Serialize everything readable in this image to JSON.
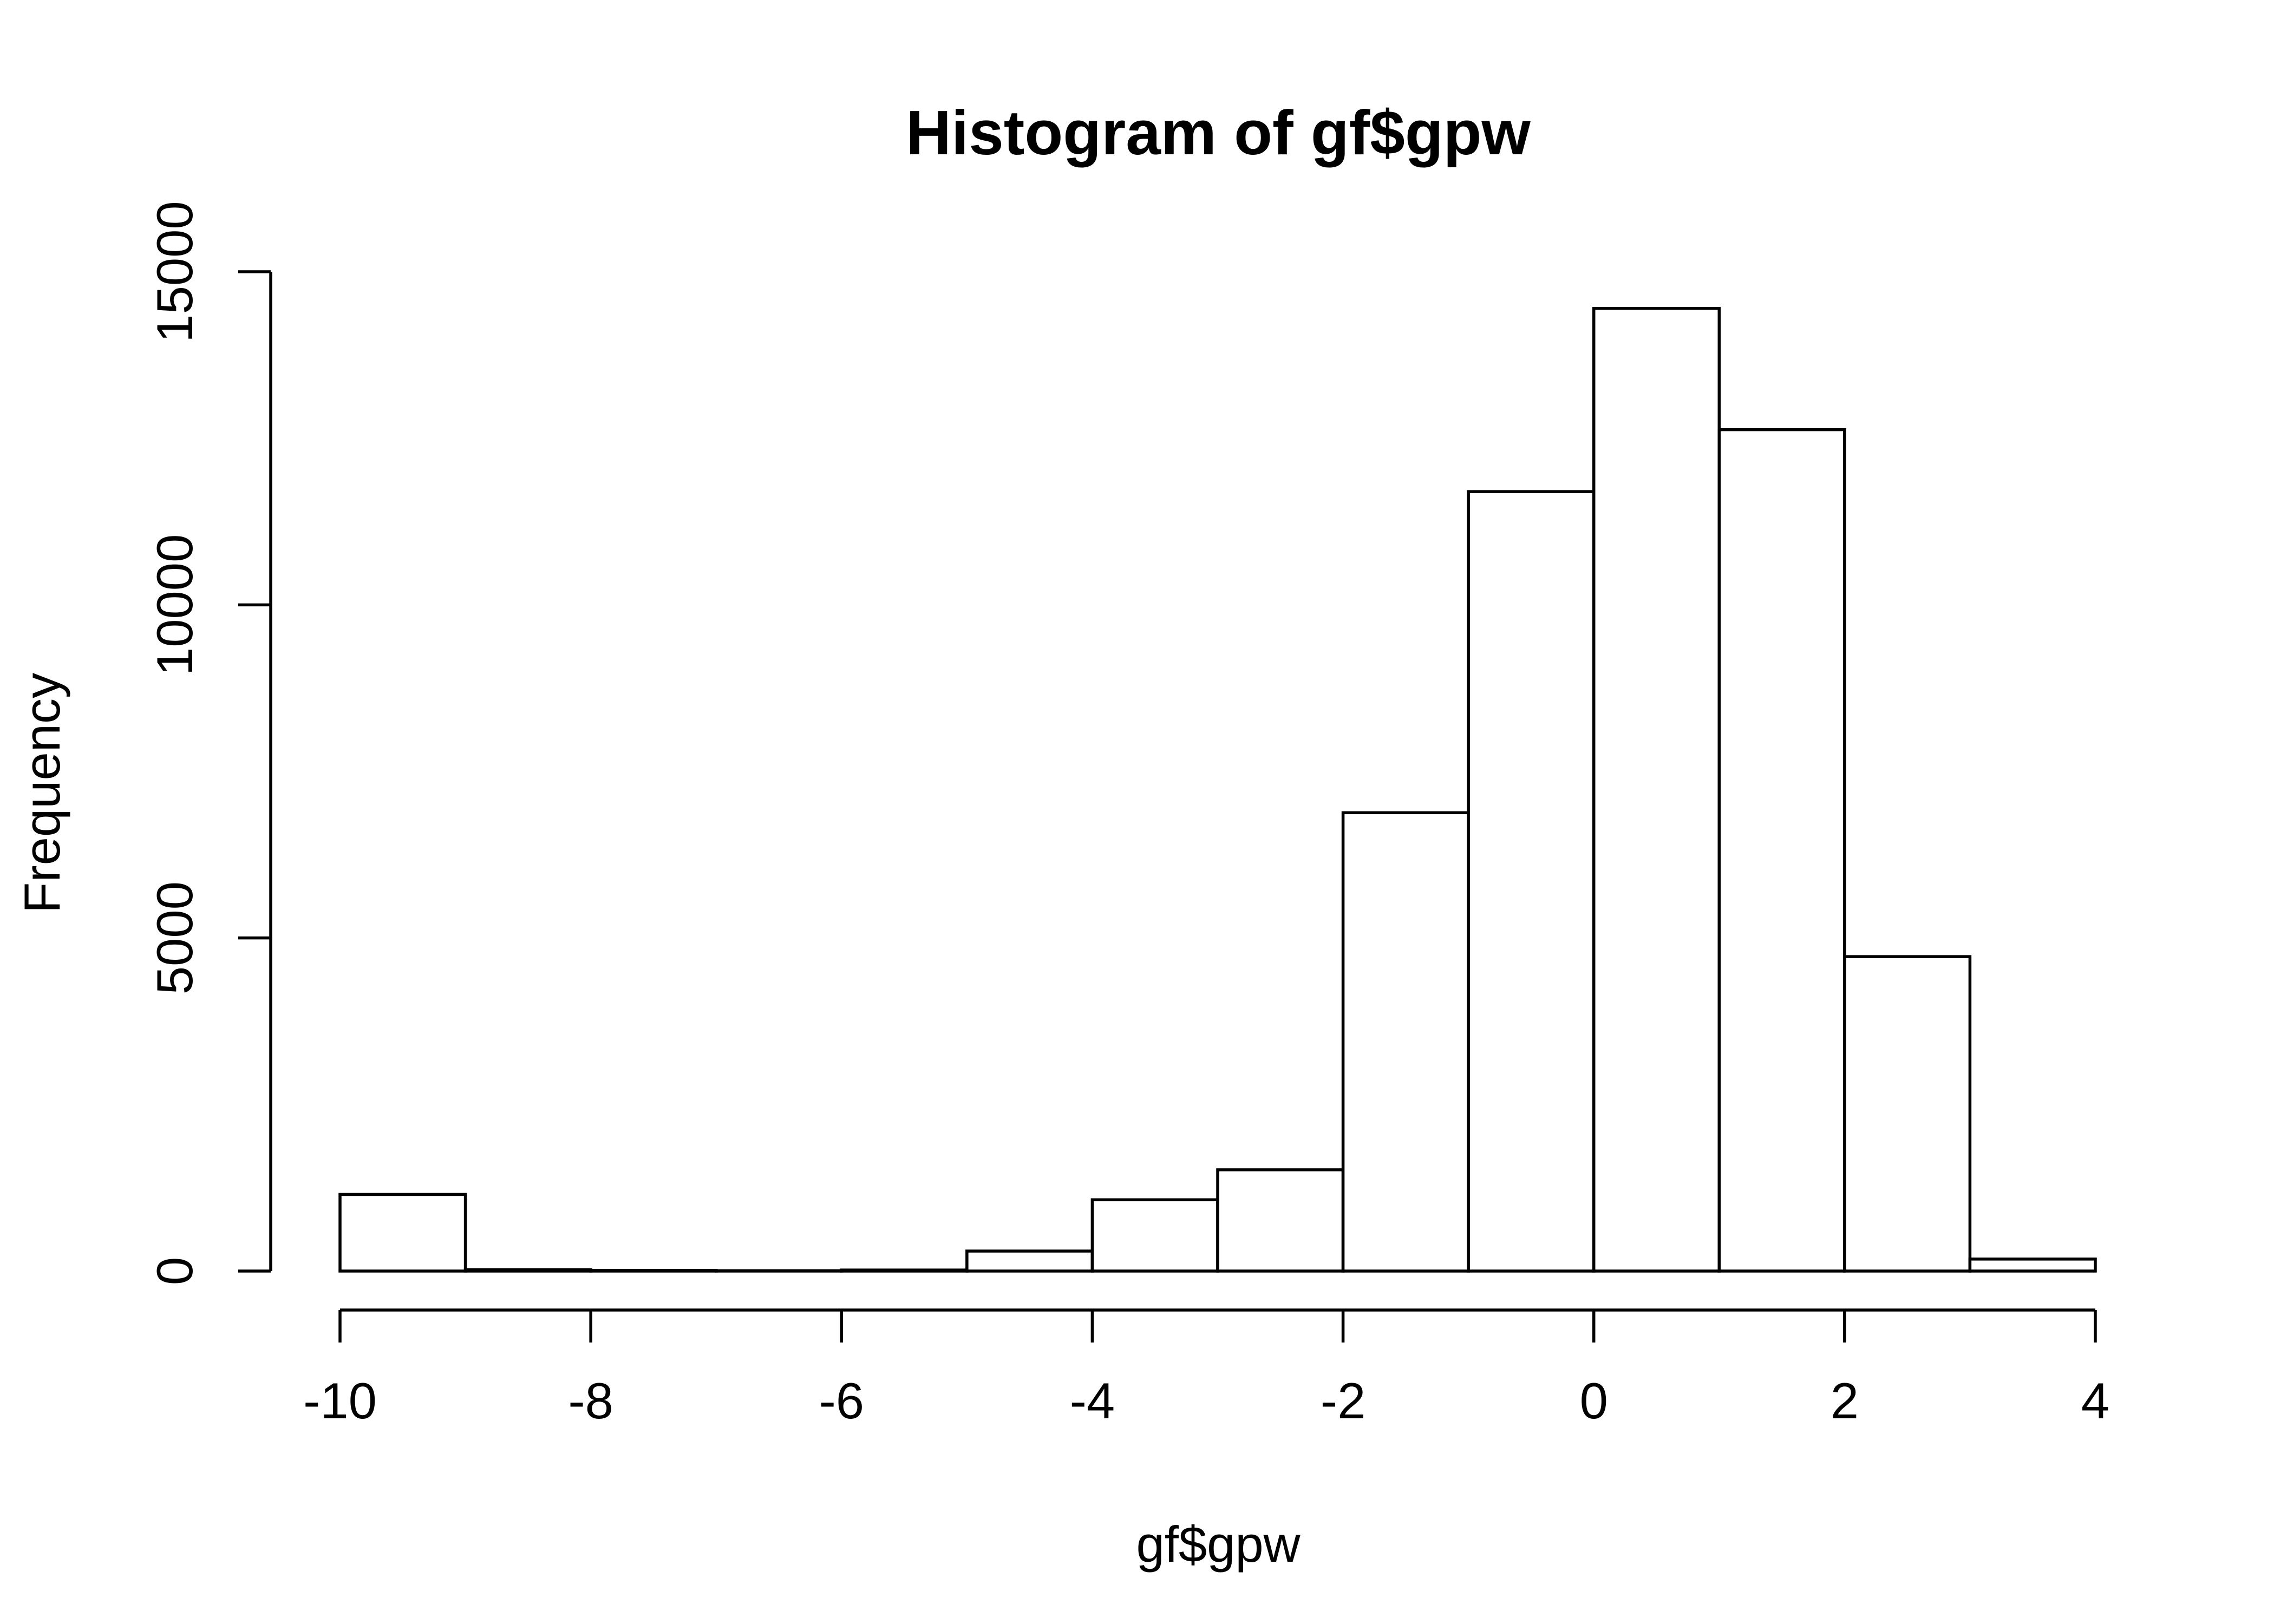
{
  "chart_data": {
    "type": "bar",
    "title": "Histogram of gf$gpw",
    "xlabel": "gf$gpw",
    "ylabel": "Frequency",
    "bin_edges": [
      -10,
      -9,
      -8,
      -7,
      -6,
      -5,
      -4,
      -3,
      -2,
      -1,
      0,
      1,
      2,
      3,
      4
    ],
    "values": [
      1150,
      20,
      10,
      5,
      15,
      300,
      1070,
      1520,
      6880,
      11700,
      14450,
      12630,
      4720,
      180
    ],
    "xlim": [
      -10,
      4
    ],
    "ylim": [
      0,
      15000
    ],
    "x_ticks": [
      -10,
      -8,
      -6,
      -4,
      -2,
      0,
      2,
      4
    ],
    "x_tick_labels": [
      "-10",
      "-8",
      "-6",
      "-4",
      "-2",
      "0",
      "2",
      "4"
    ],
    "y_ticks": [
      0,
      5000,
      10000,
      15000
    ],
    "y_tick_labels": [
      "0",
      "5000",
      "10000",
      "15000"
    ],
    "grid": false,
    "legend": "none",
    "bar_fill": "#ffffff",
    "bar_stroke": "#000000"
  }
}
